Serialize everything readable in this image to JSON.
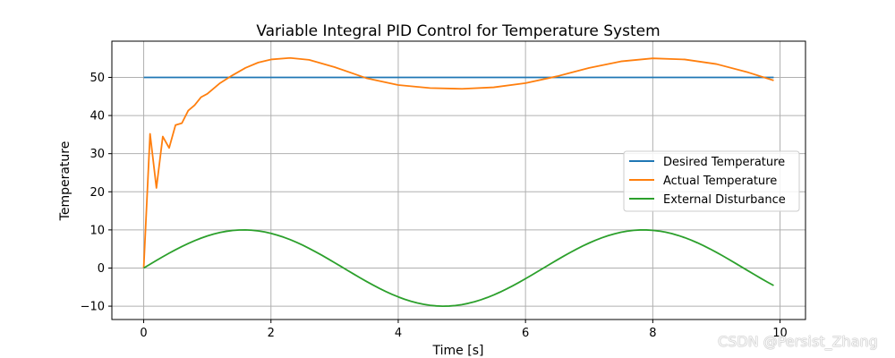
{
  "chart_data": {
    "type": "line",
    "title": "Variable Integral PID Control for Temperature System",
    "xlabel": "Time [s]",
    "ylabel": "Temperature",
    "xlim": [
      -0.5,
      10.4
    ],
    "ylim": [
      -13.5,
      59.5
    ],
    "xticks": [
      0,
      2,
      4,
      6,
      8,
      10
    ],
    "yticks": [
      -10,
      0,
      10,
      20,
      30,
      40,
      50
    ],
    "grid": true,
    "legend_position": "center-right",
    "series": [
      {
        "name": "Desired Temperature",
        "color": "#1f77b4",
        "x": [
          0,
          9.9
        ],
        "y": [
          50,
          50
        ]
      },
      {
        "name": "Actual Temperature",
        "color": "#ff7f0e",
        "x": [
          0,
          0.1,
          0.2,
          0.3,
          0.4,
          0.5,
          0.6,
          0.7,
          0.8,
          0.9,
          1.0,
          1.2,
          1.4,
          1.6,
          1.8,
          2.0,
          2.3,
          2.6,
          3.0,
          3.5,
          4.0,
          4.5,
          5.0,
          5.5,
          6.0,
          6.5,
          7.0,
          7.5,
          8.0,
          8.5,
          9.0,
          9.5,
          9.9
        ],
        "y": [
          0,
          35.2,
          21,
          34.5,
          31.5,
          37.5,
          38,
          41.3,
          42.7,
          44.8,
          45.7,
          48.5,
          50.6,
          52.5,
          53.9,
          54.7,
          55.1,
          54.6,
          52.7,
          49.8,
          48.0,
          47.2,
          47.0,
          47.4,
          48.5,
          50.3,
          52.5,
          54.2,
          55.0,
          54.7,
          53.5,
          51.3,
          49.2
        ]
      },
      {
        "name": "External Disturbance",
        "color": "#2ca02c",
        "function": "10*sin(t)",
        "x_range": [
          0,
          9.9
        ],
        "step": 0.1
      }
    ]
  },
  "watermark": "CSDN @Persist_Zhang"
}
